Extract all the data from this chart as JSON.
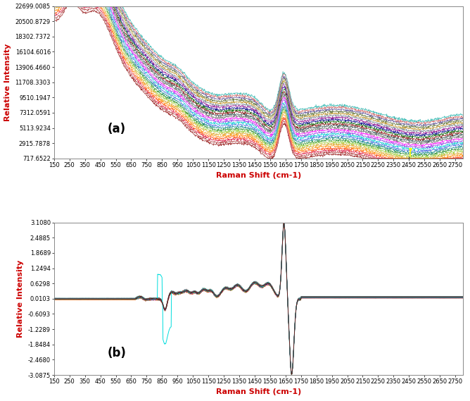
{
  "panel_a": {
    "label": "(a)",
    "xlabel": "Raman Shift (cm-1)",
    "ylabel": "Relative Intensity",
    "xlim": [
      150,
      2800
    ],
    "ylim": [
      717.6522,
      22699.0085
    ],
    "yticks": [
      717.6522,
      2915.7878,
      5113.9234,
      7312.0591,
      9510.1947,
      11708.3303,
      13906.466,
      16104.6016,
      18302.7372,
      20500.8729,
      22699.0085
    ],
    "xticks": [
      150,
      250,
      350,
      450,
      550,
      650,
      750,
      850,
      950,
      1050,
      1150,
      1250,
      1350,
      1450,
      1550,
      1650,
      1750,
      1850,
      1950,
      2050,
      2150,
      2250,
      2350,
      2450,
      2550,
      2650,
      2750
    ],
    "n_spectra": 25,
    "background_color": "#ffffff"
  },
  "panel_b": {
    "label": "(b)",
    "xlabel": "Raman Shift (cm-1)",
    "ylabel": "Relative Intensity",
    "xlim": [
      150,
      2800
    ],
    "ylim": [
      -3.0875,
      3.108
    ],
    "yticks": [
      -3.0875,
      -2.468,
      -1.8484,
      -1.2289,
      -0.6093,
      0.0103,
      0.6298,
      1.2494,
      1.8689,
      2.4885,
      3.108
    ],
    "xticks": [
      150,
      250,
      350,
      450,
      550,
      650,
      750,
      850,
      950,
      1050,
      1150,
      1250,
      1350,
      1450,
      1550,
      1650,
      1750,
      1850,
      1950,
      2050,
      2150,
      2250,
      2350,
      2450,
      2550,
      2650,
      2750
    ],
    "n_spectra": 25,
    "background_color": "#ffffff"
  },
  "colors": [
    "#8B0000",
    "#A52A2A",
    "#DC143C",
    "#FF4500",
    "#FF8C00",
    "#DAA520",
    "#9ACD32",
    "#228B22",
    "#008080",
    "#4169E1",
    "#00CED1",
    "#8A2BE2",
    "#FF00FF",
    "#696969",
    "#2F4F4F",
    "#800000",
    "#006400",
    "#00008B",
    "#8B008B",
    "#708090",
    "#B8860B",
    "#556B2F",
    "#483D8B",
    "#CD5C5C",
    "#20B2AA"
  ],
  "xlabel_color": "#cc0000",
  "ylabel_color": "#cc0000",
  "tick_fontsize": 6,
  "axis_label_fontsize": 8
}
